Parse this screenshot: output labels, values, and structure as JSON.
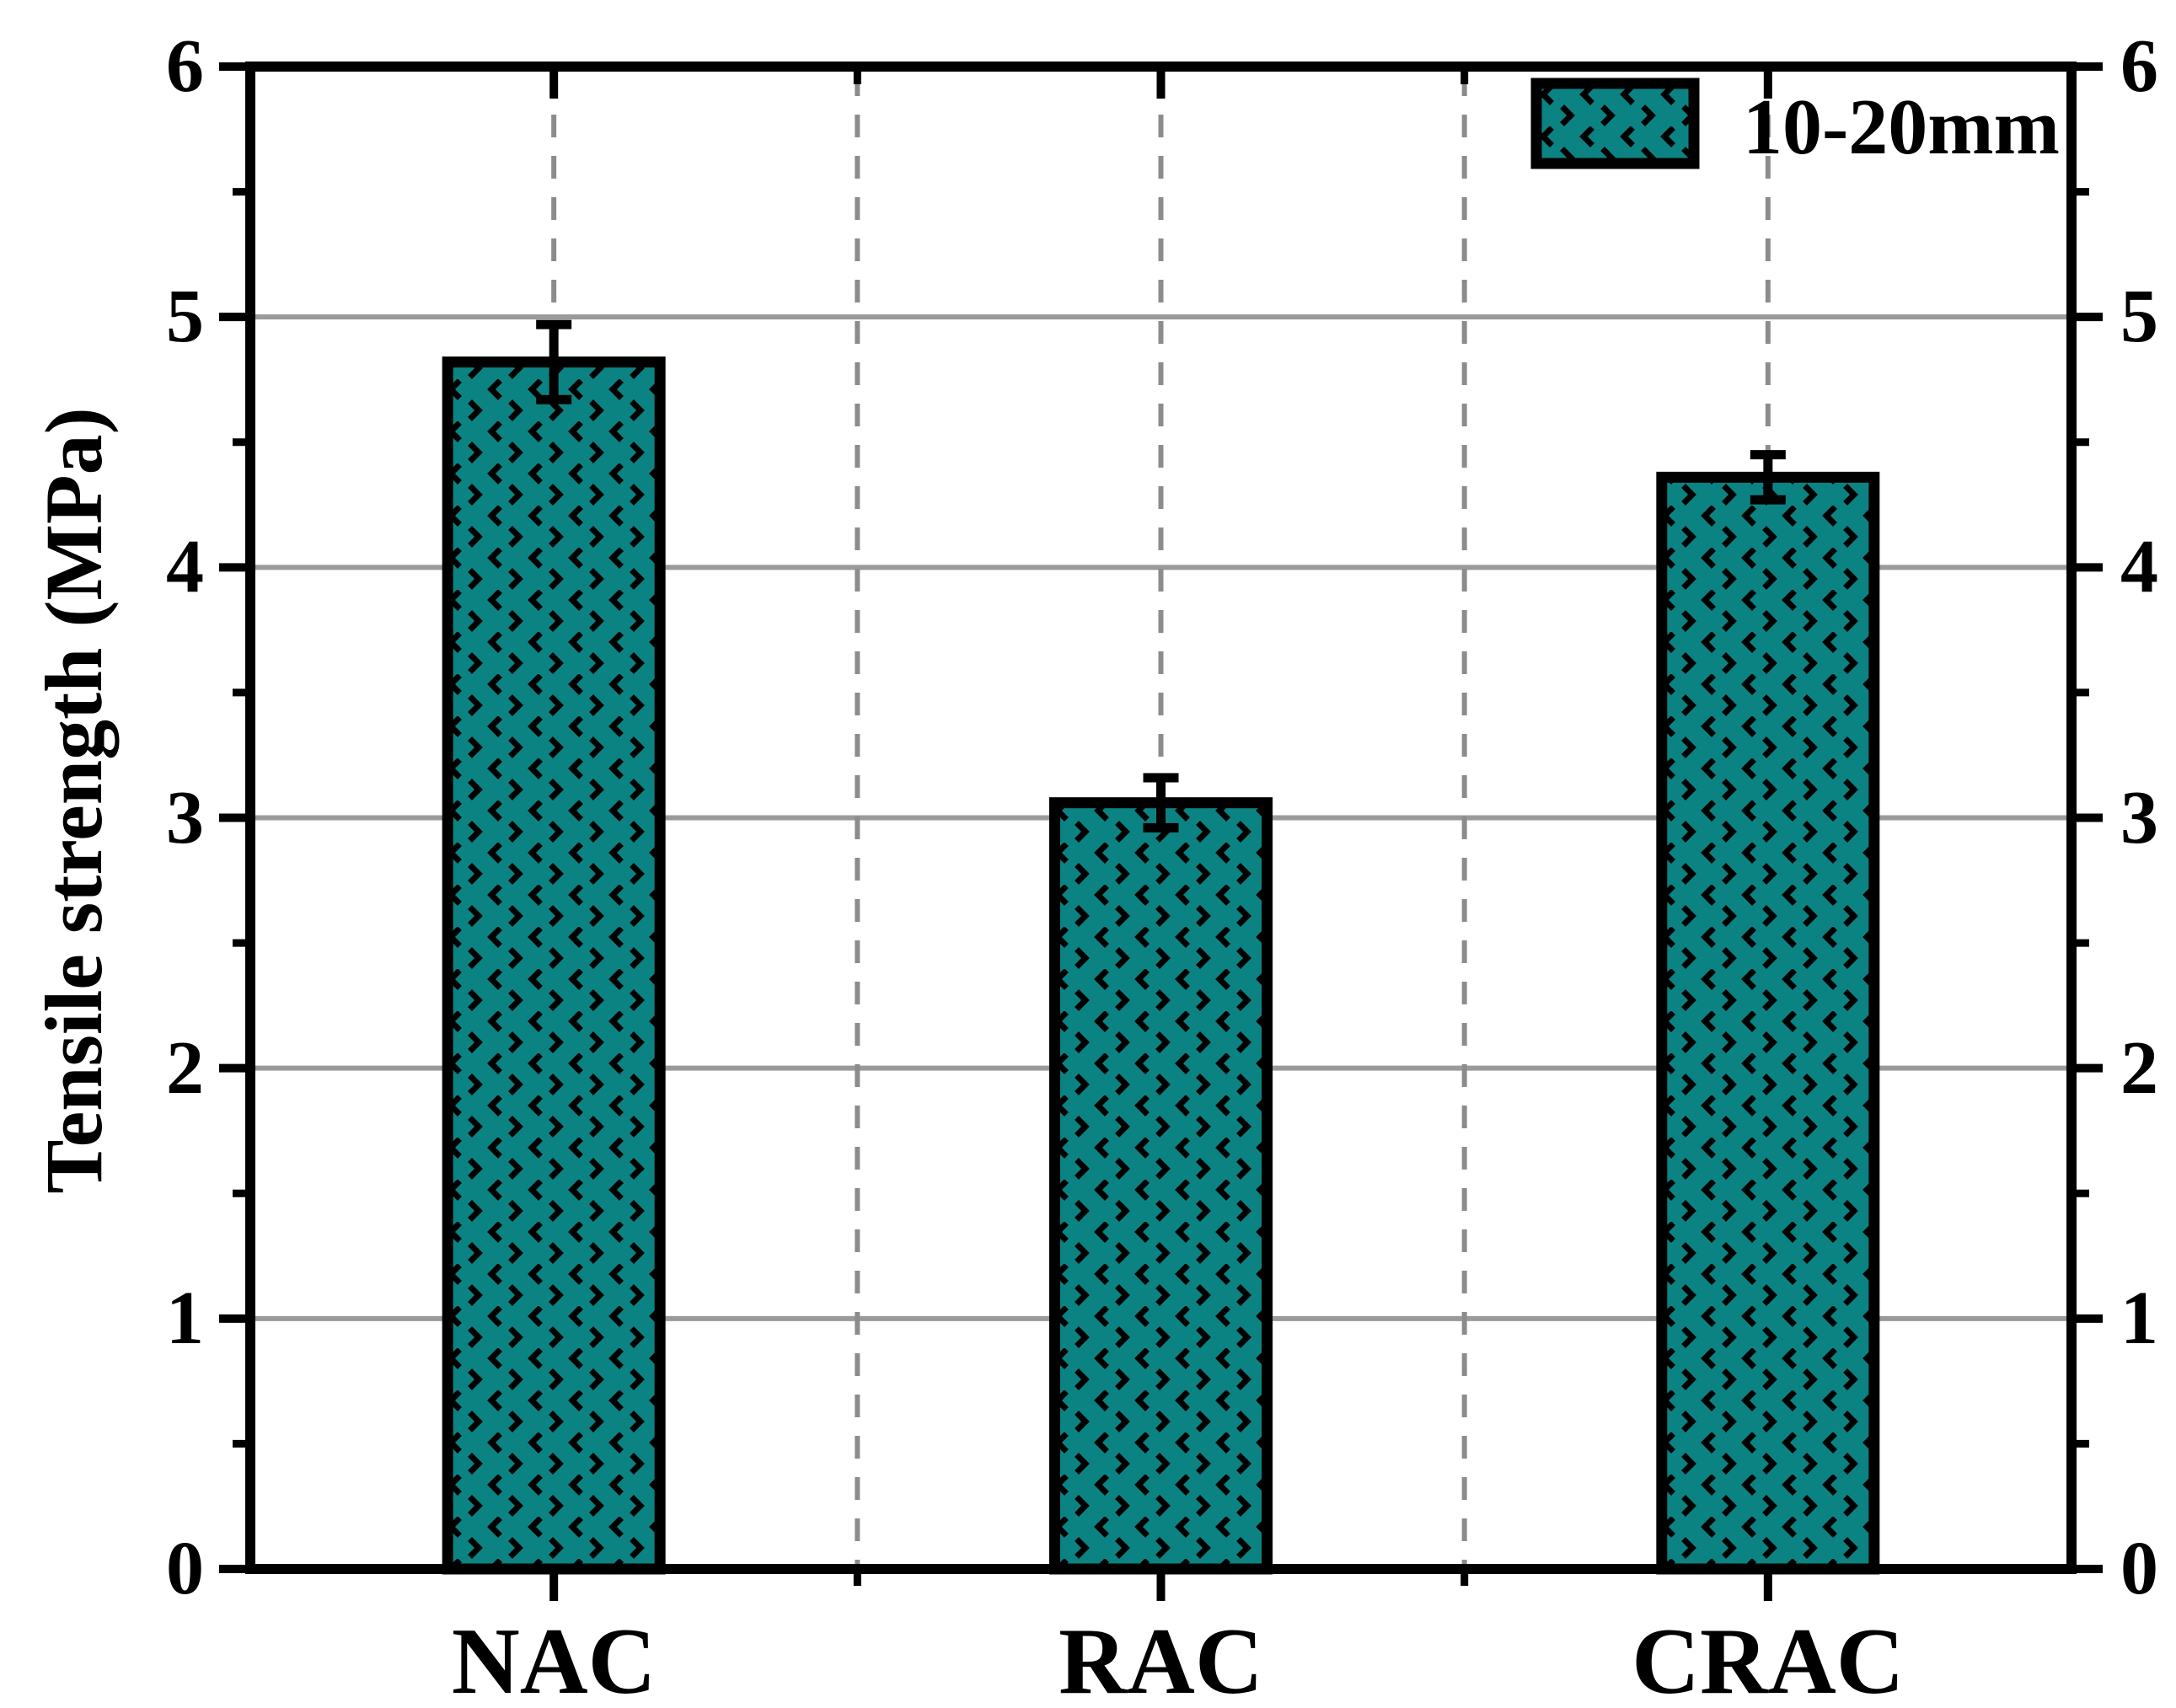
{
  "chart_data": {
    "type": "bar",
    "title": "",
    "categories": [
      "NAC",
      "RAC",
      "CRAC"
    ],
    "series": [
      {
        "name": "10-20mm",
        "values": [
          4.82,
          3.06,
          4.36
        ],
        "errors": [
          0.15,
          0.1,
          0.09
        ]
      }
    ],
    "xlabel": "",
    "ylabel": "Tensile strength (MPa)",
    "ylim": [
      0,
      6
    ],
    "yticks": [
      0,
      1,
      2,
      3,
      4,
      5,
      6
    ],
    "y_minor_step": 0.5,
    "legend": {
      "label": "10-20mm",
      "position": "top-right"
    },
    "grid": {
      "horizontal": "solid",
      "vertical": "dashed",
      "vertical_positions_units": [
        0.5,
        1,
        1.5,
        2,
        2.5
      ]
    },
    "colors": {
      "bar_fill": "#0c8383",
      "bar_edge": "#000000",
      "hatch_marks": "#000000",
      "grid_solid": "#9a9a9a",
      "grid_dashed": "#8c8c8c",
      "axis": "#000000",
      "text": "#000000",
      "background": "#ffffff"
    }
  }
}
